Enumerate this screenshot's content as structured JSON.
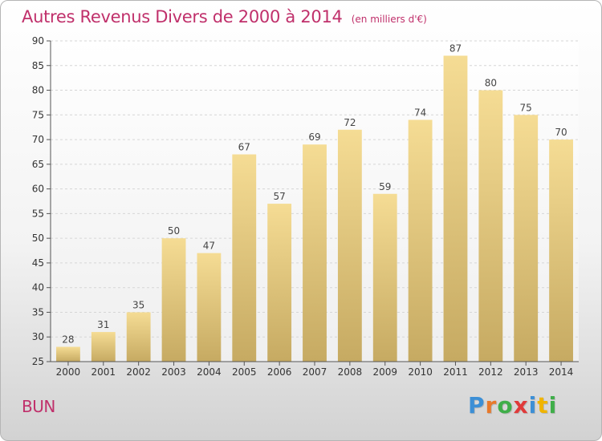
{
  "chart_data": {
    "type": "bar",
    "title": "Autres Revenus Divers de 2000 à 2014",
    "subtitle": "(en milliers d'€)",
    "categories": [
      "2000",
      "2001",
      "2002",
      "2003",
      "2004",
      "2005",
      "2006",
      "2007",
      "2008",
      "2009",
      "2010",
      "2011",
      "2012",
      "2013",
      "2014"
    ],
    "values": [
      28,
      31,
      35,
      50,
      47,
      67,
      57,
      69,
      72,
      59,
      74,
      87,
      80,
      75,
      70
    ],
    "ylim": [
      25,
      90
    ],
    "yticks": [
      25,
      30,
      35,
      40,
      45,
      50,
      55,
      60,
      65,
      70,
      75,
      80,
      85,
      90
    ],
    "grid": true,
    "bar_color": "#f2d68c"
  },
  "footer": {
    "commune": "BUN",
    "logo_letters": [
      "P",
      "r",
      "o",
      "x",
      "i",
      "t",
      "i"
    ],
    "logo_colors": [
      "#3c8fd6",
      "#e8792b",
      "#3fae49",
      "#e03a3a",
      "#3c8fd6",
      "#f0b400",
      "#3fae49"
    ]
  }
}
